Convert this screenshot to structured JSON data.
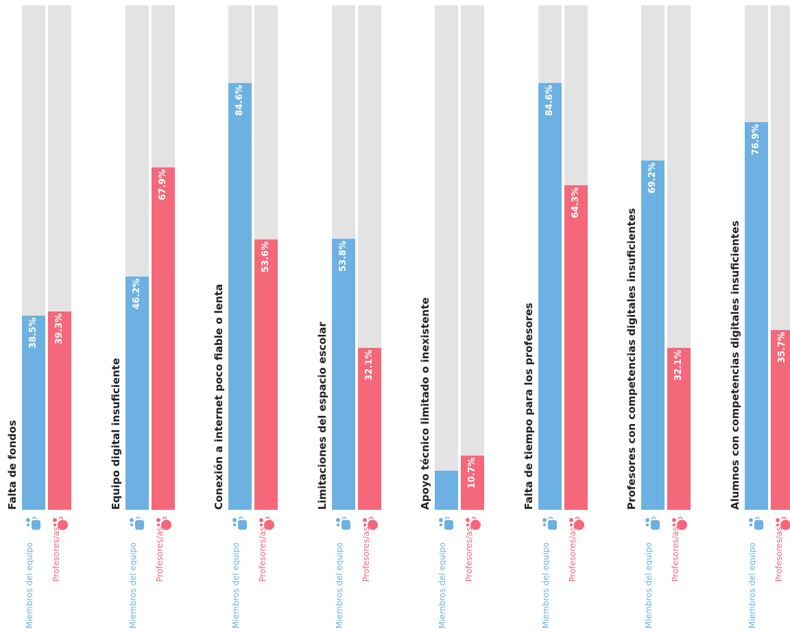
{
  "chart_data": {
    "type": "bar",
    "orientation": "vertical",
    "ylim": [
      0,
      100
    ],
    "value_suffix": "%",
    "colors": {
      "track": "#e3e3e3",
      "blue": "#6cb1e1",
      "red": "#f4687a"
    },
    "legend_labels": [
      "Miembros del equipo",
      "Profesores/as"
    ],
    "categories": [
      "Falta de fondos",
      "Equipo digital insuficiente",
      "Conexión a internet poco fiable o lenta",
      "Limitaciones del espacio escolar",
      "Apoyo técnico limitado o inexistente",
      "Falta de tiempo para los profesores",
      "Profesores con competencias digitales insuficientes",
      "Alumnos con competencias digitales insuficientes"
    ],
    "series": [
      {
        "name": "Miembros del equipo",
        "color": "#6cb1e1",
        "values": [
          38.5,
          46.2,
          84.6,
          53.8,
          7.7,
          84.6,
          69.2,
          76.9
        ],
        "labels": [
          "38.5%",
          "46.2%",
          "84.6%",
          "53.8%",
          "",
          "84.6%",
          "69.2%",
          "76.9%"
        ]
      },
      {
        "name": "Profesores/as",
        "color": "#f4687a",
        "values": [
          39.3,
          67.9,
          53.6,
          32.1,
          10.7,
          64.3,
          32.1,
          35.7
        ],
        "labels": [
          "39.3%",
          "67.9%",
          "53.6%",
          "32.1%",
          "10.7%",
          "64.3%",
          "32.1%",
          "35.7%"
        ]
      }
    ]
  }
}
